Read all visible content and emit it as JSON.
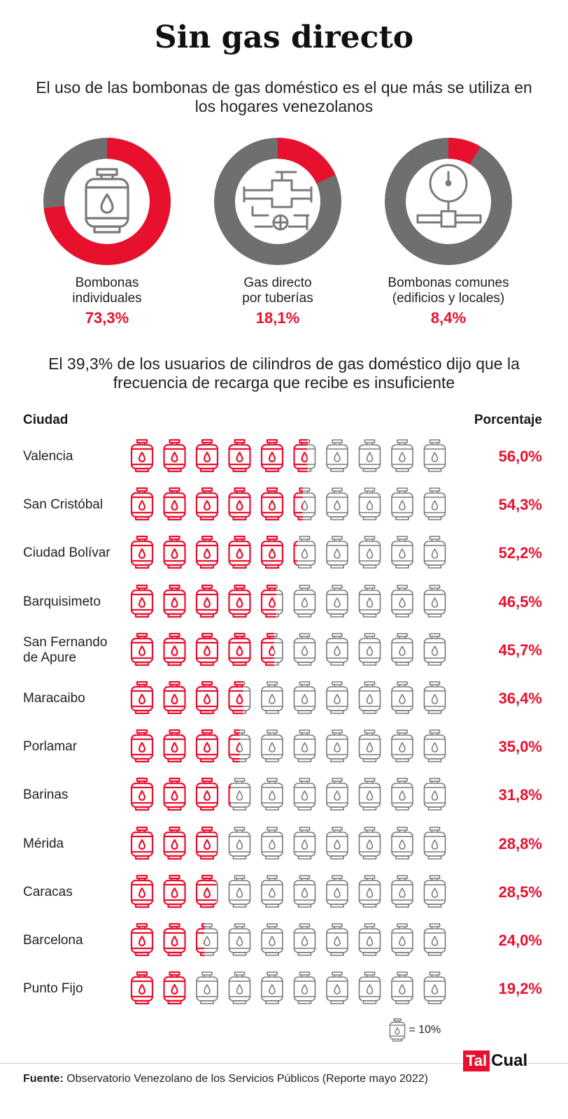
{
  "title": "Sin gas directo",
  "subtitle": "El uso de las bombonas de gas doméstico es el que más se utiliza en los hogares venezolanos",
  "colors": {
    "accent": "#e8112d",
    "gray": "#6f6f6f",
    "icon_gray": "#7a7a7a"
  },
  "donuts": [
    {
      "label_line1": "Bombonas",
      "label_line2": "individuales",
      "value_text": "73,3%",
      "value": 73.3,
      "icon": "gas-cylinder-icon"
    },
    {
      "label_line1": "Gas directo",
      "label_line2": "por tuberías",
      "value_text": "18,1%",
      "value": 18.1,
      "icon": "pipe-valve-icon"
    },
    {
      "label_line1": "Bombonas comunes",
      "label_line2": "(edificios y locales)",
      "value_text": "8,4%",
      "value": 8.4,
      "icon": "pressure-gauge-icon"
    }
  ],
  "subtitle2": "El 39,3% de los usuarios de cilindros de gas doméstico dijo que la frecuencia de recarga que recibe es insuficiente",
  "table_header": {
    "city": "Ciudad",
    "percentage": "Porcentaje"
  },
  "chart_data": {
    "type": "table",
    "title": "El 39,3% de los usuarios de cilindros de gas doméstico dijo que la frecuencia de recarga que recibe es insuficiente",
    "unit_per_icon": 10,
    "icons_per_row": 10,
    "rows": [
      {
        "city": "Valencia",
        "value": 56.0,
        "value_text": "56,0%"
      },
      {
        "city": "San Cristóbal",
        "value": 54.3,
        "value_text": "54,3%"
      },
      {
        "city": "Ciudad Bolívar",
        "value": 52.2,
        "value_text": "52,2%"
      },
      {
        "city": "Barquisimeto",
        "value": 46.5,
        "value_text": "46,5%"
      },
      {
        "city": "San Fernando de Apure",
        "city_line1": "San Fernando",
        "city_line2": "de Apure",
        "value": 45.7,
        "value_text": "45,7%"
      },
      {
        "city": "Maracaibo",
        "value": 36.4,
        "value_text": "36,4%"
      },
      {
        "city": "Porlamar",
        "value": 35.0,
        "value_text": "35,0%"
      },
      {
        "city": "Barinas",
        "value": 31.8,
        "value_text": "31,8%"
      },
      {
        "city": "Mérida",
        "value": 28.8,
        "value_text": "28,8%"
      },
      {
        "city": "Caracas",
        "value": 28.5,
        "value_text": "28,5%"
      },
      {
        "city": "Barcelona",
        "value": 24.0,
        "value_text": "24,0%"
      },
      {
        "city": "Punto Fijo",
        "value": 19.2,
        "value_text": "19,2%"
      }
    ]
  },
  "legend": {
    "text": "= 10%",
    "icon": "gas-cylinder-icon"
  },
  "source": {
    "label": "Fuente:",
    "text": "Observatorio Venezolano de los Servicios Públicos (Reporte mayo 2022)"
  },
  "logo": {
    "part1": "Tal",
    "part2": "Cual"
  }
}
